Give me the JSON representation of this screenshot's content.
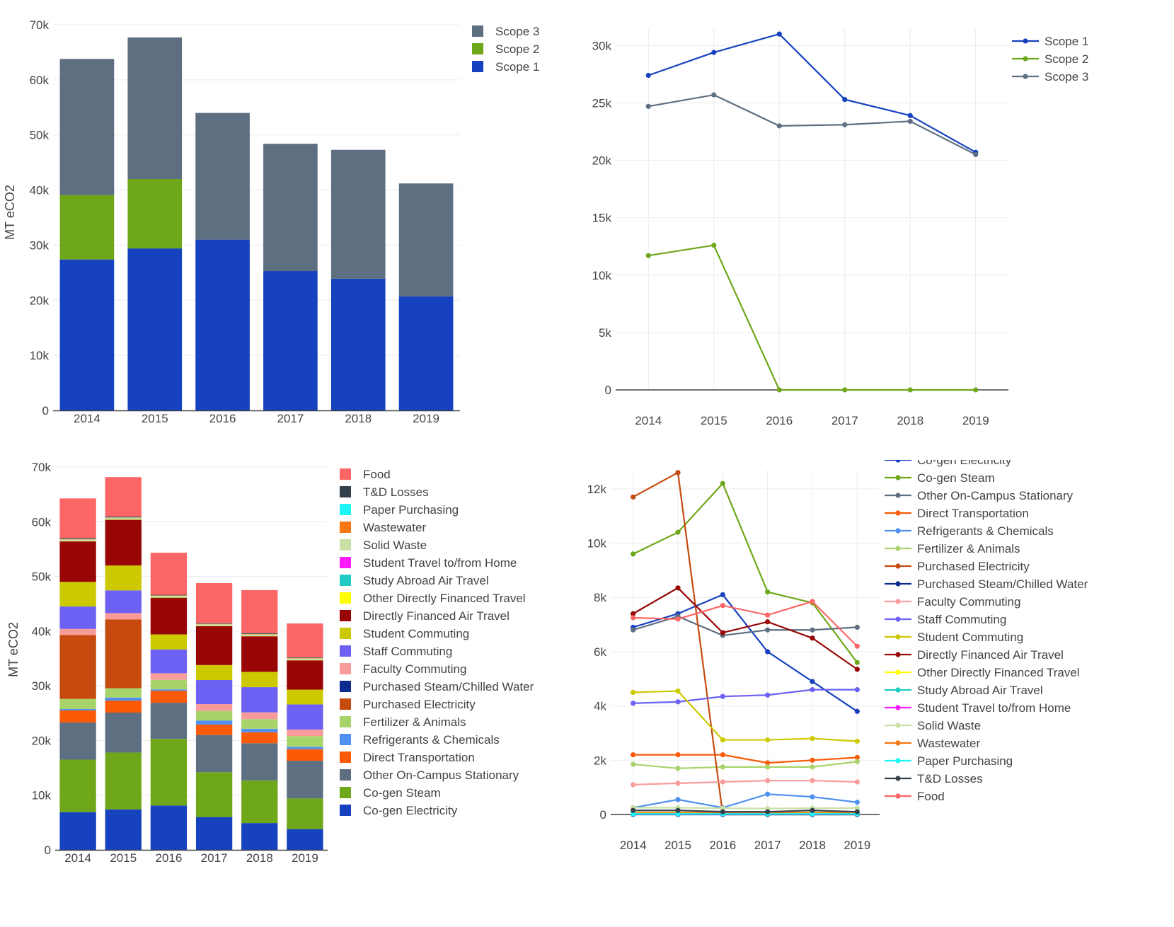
{
  "chart_data": [
    {
      "id": "tl",
      "type": "bar",
      "stacked": true,
      "title": "",
      "xlabel": "",
      "ylabel": "MT eCO2",
      "ylim": [
        0,
        70000
      ],
      "yticks": [
        0,
        10000,
        20000,
        30000,
        40000,
        50000,
        60000,
        70000
      ],
      "ytick_labels": [
        "0",
        "10k",
        "20k",
        "30k",
        "40k",
        "50k",
        "60k",
        "70k"
      ],
      "categories": [
        "2014",
        "2015",
        "2016",
        "2017",
        "2018",
        "2019"
      ],
      "legend_position": "top-right",
      "series": [
        {
          "name": "Scope 1",
          "color": "#1641bf",
          "values": [
            27400,
            29400,
            31000,
            25300,
            23900,
            20700
          ]
        },
        {
          "name": "Scope 2",
          "color": "#6ea719",
          "values": [
            11700,
            12600,
            0,
            0,
            0,
            0
          ]
        },
        {
          "name": "Scope 3",
          "color": "#5e6f81",
          "values": [
            24700,
            25700,
            23000,
            23100,
            23400,
            20500
          ]
        }
      ]
    },
    {
      "id": "tr",
      "type": "line",
      "title": "",
      "xlabel": "",
      "ylabel": "MT eCO2",
      "ylim": [
        0,
        31500
      ],
      "yticks": [
        0,
        5000,
        10000,
        15000,
        20000,
        25000,
        30000
      ],
      "ytick_labels": [
        "0",
        "5k",
        "10k",
        "15k",
        "20k",
        "25k",
        "30k"
      ],
      "categories": [
        "2014",
        "2015",
        "2016",
        "2017",
        "2018",
        "2019"
      ],
      "legend_position": "top-right",
      "series": [
        {
          "name": "Scope 1",
          "color": "#1641bf",
          "values": [
            27400,
            29400,
            31000,
            25300,
            23900,
            20700
          ]
        },
        {
          "name": "Scope 2",
          "color": "#6ea719",
          "values": [
            11700,
            12600,
            0,
            0,
            0,
            0
          ]
        },
        {
          "name": "Scope 3",
          "color": "#5e6f81",
          "values": [
            24700,
            25700,
            23000,
            23100,
            23400,
            20500
          ]
        }
      ]
    },
    {
      "id": "bl",
      "type": "bar",
      "stacked": true,
      "title": "",
      "xlabel": "",
      "ylabel": "MT eCO2",
      "ylim": [
        0,
        70000
      ],
      "yticks": [
        0,
        10000,
        20000,
        30000,
        40000,
        50000,
        60000,
        70000
      ],
      "ytick_labels": [
        "0",
        "10k",
        "20k",
        "30k",
        "40k",
        "50k",
        "60k",
        "70k"
      ],
      "categories": [
        "2014",
        "2015",
        "2016",
        "2017",
        "2018",
        "2019"
      ],
      "legend_position": "right",
      "series": [
        {
          "name": "Co-gen Electricity",
          "color": "#1641bf",
          "values": [
            6900,
            7400,
            8100,
            6000,
            4900,
            3800
          ]
        },
        {
          "name": "Co-gen Steam",
          "color": "#6ea719",
          "values": [
            9600,
            10400,
            12200,
            8200,
            7800,
            5600
          ]
        },
        {
          "name": "Other On-Campus Stationary",
          "color": "#5e6f81",
          "values": [
            6800,
            7300,
            6600,
            6800,
            6800,
            6900
          ]
        },
        {
          "name": "Direct Transportation",
          "color": "#fb5a07",
          "values": [
            2200,
            2200,
            2200,
            1900,
            2000,
            2100
          ]
        },
        {
          "name": "Refrigerants & Chemicals",
          "color": "#4f90f0",
          "values": [
            250,
            550,
            250,
            750,
            650,
            450
          ]
        },
        {
          "name": "Fertilizer & Animals",
          "color": "#a7d46a",
          "values": [
            1850,
            1700,
            1750,
            1750,
            1750,
            1950
          ]
        },
        {
          "name": "Purchased Electricity",
          "color": "#c74a0e",
          "values": [
            11700,
            12600,
            0,
            0,
            0,
            0
          ]
        },
        {
          "name": "Purchased Steam/Chilled Water",
          "color": "#0b2b8f",
          "values": [
            0,
            0,
            0,
            0,
            0,
            0
          ]
        },
        {
          "name": "Faculty Commuting",
          "color": "#f99b9b",
          "values": [
            1100,
            1150,
            1200,
            1250,
            1250,
            1200
          ]
        },
        {
          "name": "Staff Commuting",
          "color": "#6c61f2",
          "values": [
            4100,
            4150,
            4350,
            4400,
            4600,
            4600
          ]
        },
        {
          "name": "Student Commuting",
          "color": "#cdc901",
          "values": [
            4500,
            4550,
            2750,
            2750,
            2800,
            2700
          ]
        },
        {
          "name": "Directly Financed Air Travel",
          "color": "#980606",
          "values": [
            7400,
            8350,
            6700,
            7100,
            6500,
            5350
          ]
        },
        {
          "name": "Other Directly Financed Travel",
          "color": "#ffff00",
          "values": [
            70,
            70,
            70,
            70,
            70,
            70
          ]
        },
        {
          "name": "Study Abroad Air Travel",
          "color": "#1fcac3",
          "values": [
            40,
            40,
            40,
            40,
            40,
            40
          ]
        },
        {
          "name": "Student Travel to/from Home",
          "color": "#ff1aff",
          "values": [
            20,
            20,
            20,
            20,
            20,
            20
          ]
        },
        {
          "name": "Solid Waste",
          "color": "#c8e0a4",
          "values": [
            250,
            250,
            230,
            220,
            230,
            240
          ]
        },
        {
          "name": "Wastewater",
          "color": "#f67713",
          "values": [
            60,
            60,
            60,
            60,
            60,
            60
          ]
        },
        {
          "name": "Paper Purchasing",
          "color": "#1ff4f4",
          "values": [
            20,
            20,
            20,
            20,
            20,
            20
          ]
        },
        {
          "name": "T&D Losses",
          "color": "#34404a",
          "values": [
            150,
            150,
            100,
            100,
            150,
            100
          ]
        },
        {
          "name": "Food",
          "color": "#fd6666",
          "values": [
            7250,
            7200,
            7700,
            7350,
            7850,
            6200
          ]
        }
      ]
    },
    {
      "id": "br",
      "type": "line",
      "title": "",
      "xlabel": "",
      "ylabel": "MT eCO2",
      "ylim": [
        0,
        12700
      ],
      "yticks": [
        0,
        2000,
        4000,
        6000,
        8000,
        10000,
        12000
      ],
      "ytick_labels": [
        "0",
        "2k",
        "4k",
        "6k",
        "8k",
        "10k",
        "12k"
      ],
      "categories": [
        "2014",
        "2015",
        "2016",
        "2017",
        "2018",
        "2019"
      ],
      "legend_position": "right",
      "series": [
        {
          "name": "Co-gen Electricity",
          "color": "#1641bf",
          "values": [
            6900,
            7400,
            8100,
            6000,
            4900,
            3800
          ]
        },
        {
          "name": "Co-gen Steam",
          "color": "#6ea719",
          "values": [
            9600,
            10400,
            12200,
            8200,
            7800,
            5600
          ]
        },
        {
          "name": "Other On-Campus Stationary",
          "color": "#5e6f81",
          "values": [
            6800,
            7300,
            6600,
            6800,
            6800,
            6900
          ]
        },
        {
          "name": "Direct Transportation",
          "color": "#fb5a07",
          "values": [
            2200,
            2200,
            2200,
            1900,
            2000,
            2100
          ]
        },
        {
          "name": "Refrigerants & Chemicals",
          "color": "#4f90f0",
          "values": [
            250,
            550,
            250,
            750,
            650,
            450
          ]
        },
        {
          "name": "Fertilizer & Animals",
          "color": "#a7d46a",
          "values": [
            1850,
            1700,
            1750,
            1750,
            1750,
            1950
          ]
        },
        {
          "name": "Purchased Electricity",
          "color": "#c74a0e",
          "values": [
            11700,
            12600,
            0,
            0,
            0,
            0
          ]
        },
        {
          "name": "Purchased Steam/Chilled Water",
          "color": "#0b2b8f",
          "values": [
            0,
            0,
            0,
            0,
            0,
            0
          ]
        },
        {
          "name": "Faculty Commuting",
          "color": "#f99b9b",
          "values": [
            1100,
            1150,
            1200,
            1250,
            1250,
            1200
          ]
        },
        {
          "name": "Staff Commuting",
          "color": "#6c61f2",
          "values": [
            4100,
            4150,
            4350,
            4400,
            4600,
            4600
          ]
        },
        {
          "name": "Student Commuting",
          "color": "#cdc901",
          "values": [
            4500,
            4550,
            2750,
            2750,
            2800,
            2700
          ]
        },
        {
          "name": "Directly Financed Air Travel",
          "color": "#980606",
          "values": [
            7400,
            8350,
            6700,
            7100,
            6500,
            5350
          ]
        },
        {
          "name": "Other Directly Financed Travel",
          "color": "#ffff00",
          "values": [
            70,
            70,
            70,
            70,
            70,
            70
          ]
        },
        {
          "name": "Study Abroad Air Travel",
          "color": "#1fcac3",
          "values": [
            40,
            40,
            40,
            40,
            40,
            40
          ]
        },
        {
          "name": "Student Travel to/from Home",
          "color": "#ff1aff",
          "values": [
            20,
            20,
            20,
            20,
            20,
            20
          ]
        },
        {
          "name": "Solid Waste",
          "color": "#c8e0a4",
          "values": [
            250,
            250,
            230,
            220,
            230,
            240
          ]
        },
        {
          "name": "Wastewater",
          "color": "#f67713",
          "values": [
            60,
            60,
            60,
            60,
            60,
            60
          ]
        },
        {
          "name": "Paper Purchasing",
          "color": "#1ff4f4",
          "values": [
            20,
            20,
            20,
            20,
            20,
            20
          ]
        },
        {
          "name": "T&D Losses",
          "color": "#34404a",
          "values": [
            150,
            150,
            100,
            100,
            150,
            100
          ]
        },
        {
          "name": "Food",
          "color": "#fd6666",
          "values": [
            7250,
            7200,
            7700,
            7350,
            7850,
            6200
          ]
        }
      ]
    }
  ]
}
